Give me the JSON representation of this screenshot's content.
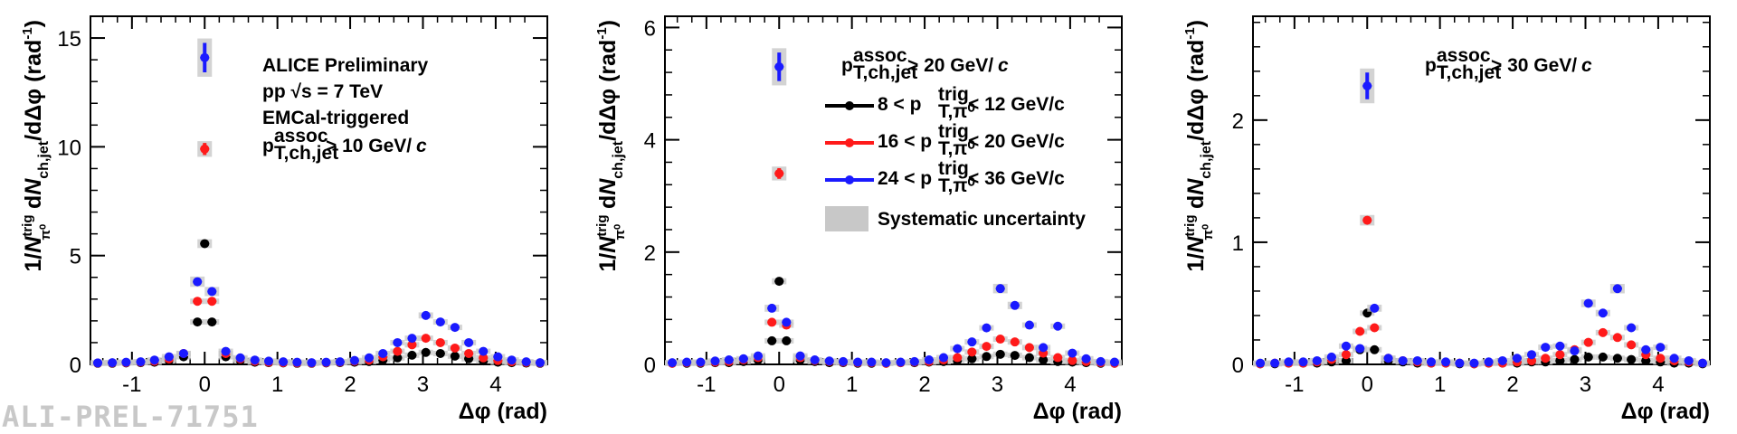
{
  "watermark": "ALI-PREL-71751",
  "colors": {
    "black": "#000000",
    "red": "#ff1a1a",
    "blue": "#1a1aff",
    "syst": "#c8c8c8"
  },
  "annotations": {
    "collaboration": "ALICE Preliminary",
    "system": "pp  √s = 7 TeV",
    "trigger": "EMCal-triggered"
  },
  "legend": {
    "series_names": [
      "8  <  p_T,π0^trig < 12 GeV/c",
      "16 <  p_T,π0^trig < 20 GeV/c",
      "24 <  p_T,π0^trig < 36 GeV/c"
    ],
    "systematic": "Systematic uncertainty"
  },
  "chart_data": [
    {
      "type": "scatter",
      "xlabel": "Δφ (rad)",
      "ylabel": "1/N_π0^trig dN_ch,jet/dΔφ (rad^-1)",
      "xlim": [
        -1.57,
        4.71
      ],
      "ylim": [
        0,
        16
      ],
      "xticks": [
        "-1",
        "0",
        "1",
        "2",
        "3",
        "4"
      ],
      "yticks": [
        "0",
        "5",
        "10",
        "15"
      ],
      "cut_label": "p_T,ch,jet^assoc > 10 GeV/c",
      "x": [
        -1.47,
        -1.27,
        -1.08,
        -0.88,
        -0.69,
        -0.49,
        -0.29,
        -0.1,
        0.1,
        0.29,
        0.49,
        0.69,
        0.88,
        1.08,
        1.27,
        1.47,
        1.67,
        1.86,
        2.06,
        2.26,
        2.45,
        2.65,
        2.85,
        3.04,
        3.24,
        3.44,
        3.63,
        3.83,
        4.03,
        4.22,
        4.42,
        4.61
      ],
      "series": [
        {
          "values": [
            0.05,
            0.05,
            0.07,
            0.08,
            0.1,
            0.18,
            0.35,
            1.95,
            1.95,
            0.35,
            0.18,
            0.1,
            0.08,
            0.07,
            0.05,
            0.05,
            0.07,
            0.08,
            0.1,
            0.13,
            0.2,
            0.3,
            0.42,
            0.55,
            0.5,
            0.38,
            0.26,
            0.16,
            0.1,
            0.08,
            0.06,
            0.05
          ]
        },
        {
          "values": [
            0.06,
            0.07,
            0.08,
            0.1,
            0.14,
            0.25,
            0.5,
            2.9,
            2.9,
            0.5,
            0.25,
            0.14,
            0.1,
            0.08,
            0.07,
            0.06,
            0.08,
            0.1,
            0.14,
            0.2,
            0.35,
            0.6,
            0.9,
            1.2,
            1.0,
            0.75,
            0.5,
            0.3,
            0.18,
            0.12,
            0.09,
            0.07
          ]
        },
        {
          "values": [
            0.07,
            0.08,
            0.1,
            0.12,
            0.2,
            0.35,
            0.5,
            3.8,
            3.35,
            0.6,
            0.3,
            0.2,
            0.15,
            0.12,
            0.1,
            0.08,
            0.1,
            0.12,
            0.18,
            0.3,
            0.5,
            1.0,
            1.2,
            2.25,
            1.95,
            1.7,
            1.0,
            0.6,
            0.35,
            0.2,
            0.12,
            0.08
          ]
        }
      ],
      "peak": [
        {
          "x": 0.0,
          "values": [
            5.55,
            9.9,
            14.1
          ]
        }
      ]
    },
    {
      "type": "scatter",
      "xlabel": "Δφ (rad)",
      "ylabel": "1/N_π0^trig dN_ch,jet/dΔφ (rad^-1)",
      "xlim": [
        -1.57,
        4.71
      ],
      "ylim": [
        0,
        6.2
      ],
      "xticks": [
        "-1",
        "0",
        "1",
        "2",
        "3",
        "4"
      ],
      "yticks": [
        "0",
        "2",
        "4",
        "6"
      ],
      "cut_label": "p_T,ch,jet^assoc > 20 GeV/c",
      "x": [
        -1.47,
        -1.27,
        -1.08,
        -0.88,
        -0.69,
        -0.49,
        -0.29,
        -0.1,
        0.1,
        0.29,
        0.49,
        0.69,
        0.88,
        1.08,
        1.27,
        1.47,
        1.67,
        1.86,
        2.06,
        2.26,
        2.45,
        2.65,
        2.85,
        3.04,
        3.24,
        3.44,
        3.63,
        3.83,
        4.03,
        4.22,
        4.42,
        4.61
      ],
      "series": [
        {
          "values": [
            0.02,
            0.02,
            0.02,
            0.03,
            0.03,
            0.05,
            0.08,
            0.42,
            0.42,
            0.08,
            0.05,
            0.03,
            0.03,
            0.02,
            0.02,
            0.02,
            0.03,
            0.03,
            0.04,
            0.05,
            0.07,
            0.1,
            0.14,
            0.18,
            0.16,
            0.12,
            0.08,
            0.05,
            0.04,
            0.03,
            0.02,
            0.02
          ]
        },
        {
          "values": [
            0.02,
            0.03,
            0.03,
            0.04,
            0.05,
            0.08,
            0.12,
            0.75,
            0.7,
            0.12,
            0.07,
            0.05,
            0.04,
            0.03,
            0.03,
            0.02,
            0.03,
            0.04,
            0.05,
            0.08,
            0.12,
            0.22,
            0.32,
            0.45,
            0.4,
            0.3,
            0.2,
            0.12,
            0.07,
            0.05,
            0.03,
            0.02
          ]
        },
        {
          "values": [
            0.03,
            0.04,
            0.04,
            0.06,
            0.08,
            0.1,
            0.15,
            1.0,
            0.75,
            0.15,
            0.08,
            0.06,
            0.05,
            0.04,
            0.04,
            0.03,
            0.04,
            0.05,
            0.08,
            0.12,
            0.28,
            0.4,
            0.65,
            1.35,
            1.05,
            0.7,
            0.3,
            0.68,
            0.2,
            0.1,
            0.05,
            0.04
          ]
        }
      ],
      "peak": [
        {
          "x": 0.0,
          "values": [
            1.48,
            3.4,
            5.3
          ]
        }
      ]
    },
    {
      "type": "scatter",
      "xlabel": "Δφ (rad)",
      "ylabel": "1/N_π0^trig dN_ch,jet/dΔφ (rad^-1)",
      "xlim": [
        -1.57,
        4.71
      ],
      "ylim": [
        0,
        2.85
      ],
      "xticks": [
        "-1",
        "0",
        "1",
        "2",
        "3",
        "4"
      ],
      "yticks": [
        "0",
        "1",
        "2"
      ],
      "cut_label": "p_T,ch,jet^assoc > 30 GeV/c",
      "x": [
        -1.47,
        -1.27,
        -1.08,
        -0.88,
        -0.69,
        -0.49,
        -0.29,
        -0.1,
        0.1,
        0.29,
        0.49,
        0.69,
        0.88,
        1.08,
        1.27,
        1.47,
        1.67,
        1.86,
        2.06,
        2.26,
        2.45,
        2.65,
        2.85,
        3.04,
        3.24,
        3.44,
        3.63,
        3.83,
        4.03,
        4.22,
        4.42,
        4.61
      ],
      "series": [
        {
          "values": [
            0.005,
            0.005,
            0.01,
            0.01,
            0.01,
            0.02,
            0.03,
            0.12,
            0.12,
            0.03,
            0.02,
            0.01,
            0.01,
            0.01,
            0.005,
            0.005,
            0.01,
            0.01,
            0.01,
            0.02,
            0.02,
            0.03,
            0.04,
            0.06,
            0.06,
            0.05,
            0.04,
            0.03,
            0.02,
            0.01,
            0.01,
            0.005
          ]
        },
        {
          "values": [
            0.005,
            0.01,
            0.01,
            0.01,
            0.02,
            0.04,
            0.08,
            0.27,
            0.3,
            0.05,
            0.03,
            0.02,
            0.01,
            0.01,
            0.01,
            0.005,
            0.01,
            0.01,
            0.02,
            0.03,
            0.05,
            0.08,
            0.12,
            0.18,
            0.26,
            0.22,
            0.16,
            0.08,
            0.05,
            0.03,
            0.02,
            0.01
          ]
        },
        {
          "values": [
            0.01,
            0.01,
            0.02,
            0.02,
            0.03,
            0.06,
            0.15,
            0.13,
            0.46,
            0.05,
            0.03,
            0.03,
            0.02,
            0.02,
            0.01,
            0.01,
            0.02,
            0.03,
            0.05,
            0.08,
            0.14,
            0.15,
            0.11,
            0.5,
            0.42,
            0.62,
            0.3,
            0.12,
            0.14,
            0.05,
            0.03,
            0.01
          ]
        }
      ],
      "peak": [
        {
          "x": 0.0,
          "values": [
            0.42,
            1.18,
            2.28
          ]
        }
      ]
    }
  ]
}
